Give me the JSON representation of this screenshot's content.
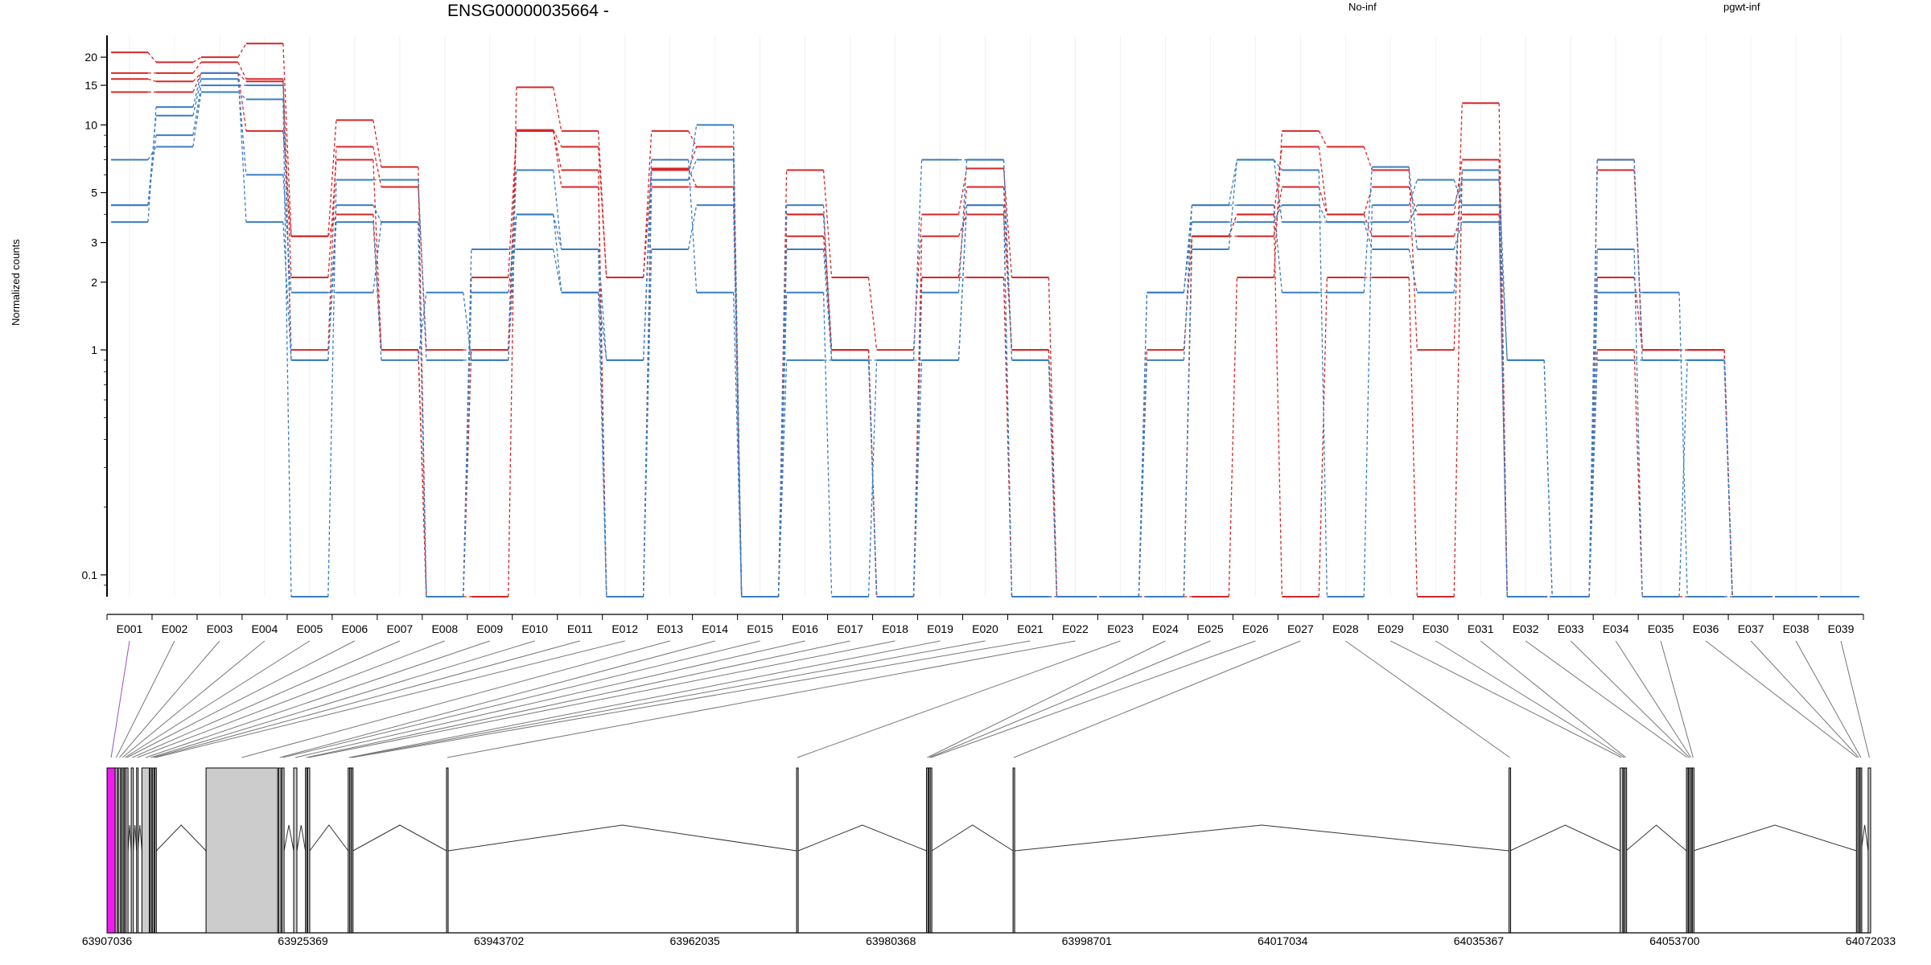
{
  "chart_data": {
    "type": "line",
    "title": "ENSG00000035664 -",
    "ylabel": "Normalized counts",
    "xlabel": "",
    "yscale": "log",
    "ylim": [
      0.08,
      25
    ],
    "yticks": [
      0.1,
      1,
      2,
      3,
      5,
      10,
      15,
      20
    ],
    "ytick_labels": [
      "0.1",
      "1",
      "2",
      "3",
      "5",
      "10",
      "15",
      "20"
    ],
    "grid": "vertical-light",
    "legend_placement": "top-right",
    "colors": {
      "No-inf": "#d62728",
      "pgwt-inf": "#3a7dc2"
    },
    "categories": [
      "E001",
      "E002",
      "E003",
      "E004",
      "E005",
      "E006",
      "E007",
      "E008",
      "E009",
      "E010",
      "E011",
      "E012",
      "E013",
      "E014",
      "E015",
      "E016",
      "E017",
      "E018",
      "E019",
      "E020",
      "E021",
      "E022",
      "E023",
      "E024",
      "E025",
      "E026",
      "E027",
      "E028",
      "E029",
      "E030",
      "E031",
      "E032",
      "E033",
      "E034",
      "E035",
      "E036",
      "E037",
      "E038",
      "E039"
    ],
    "legend": [
      {
        "label": "No-inf",
        "group": "No-inf"
      },
      {
        "label": "pgwt-inf",
        "group": "pgwt-inf"
      }
    ],
    "series": [
      {
        "group": "No-inf",
        "values": [
          21,
          19,
          20,
          23,
          3.2,
          10.5,
          6.5,
          0.08,
          0.08,
          14.7,
          9.4,
          2.1,
          9.4,
          8,
          0.08,
          6.3,
          2.1,
          1,
          4,
          6.4,
          2.1,
          0.08,
          0.08,
          0.08,
          0.08,
          2.1,
          9.4,
          8,
          6.3,
          1,
          12.5,
          0.08,
          0.08,
          6.3,
          1,
          1,
          0.08,
          0.08,
          0.08
        ]
      },
      {
        "group": "No-inf",
        "values": [
          17,
          17,
          19,
          16,
          1,
          8,
          5.3,
          1,
          1,
          9.5,
          8,
          2.1,
          6.3,
          8,
          0.08,
          4,
          1,
          0.08,
          2.1,
          5.3,
          1,
          0.08,
          0.08,
          0.08,
          3.2,
          4,
          8,
          4,
          5.3,
          4,
          7,
          0.08,
          0.08,
          7,
          1,
          1,
          0.08,
          0.08,
          0.08
        ]
      },
      {
        "group": "No-inf",
        "values": [
          16,
          15.6,
          17,
          15.6,
          2.1,
          7,
          1,
          0.08,
          2.1,
          9.4,
          6.3,
          0.08,
          6.4,
          5.3,
          0.08,
          3.2,
          1,
          0.08,
          3.2,
          4,
          1,
          0.08,
          0.08,
          1,
          3.2,
          3.2,
          5.3,
          4,
          3.2,
          3.2,
          4,
          0.08,
          0.08,
          2.1,
          1,
          1,
          0.08,
          0.08,
          0.08
        ]
      },
      {
        "group": "No-inf",
        "values": [
          14,
          14,
          17,
          9.4,
          3.2,
          4,
          1,
          0.08,
          1,
          9.4,
          5.3,
          0.08,
          5.3,
          5.3,
          0.08,
          4,
          1,
          0.08,
          2.1,
          2.1,
          0.08,
          0.08,
          0.08,
          0.08,
          3.2,
          4,
          0.08,
          2.1,
          2.1,
          0.08,
          6.3,
          0.08,
          0.08,
          1,
          0.08,
          0.08,
          0.08,
          0.08,
          0.08
        ]
      },
      {
        "group": "pgwt-inf",
        "values": [
          7,
          8,
          14,
          13,
          0.08,
          5.7,
          5.7,
          0.9,
          0.9,
          6.3,
          2.8,
          0.08,
          5.7,
          7,
          0.08,
          4.4,
          0.9,
          0.9,
          0.9,
          4.4,
          0.08,
          0.08,
          0.08,
          1.8,
          4.4,
          7,
          6.3,
          0.08,
          4.4,
          5.7,
          4.4,
          0.9,
          0.08,
          1.8,
          1.8,
          0.08,
          0.08,
          0.08,
          0.08
        ]
      },
      {
        "group": "pgwt-inf",
        "values": [
          4.4,
          9,
          15,
          15,
          0.9,
          4.4,
          3.7,
          0.08,
          1.8,
          4,
          1.8,
          0.9,
          5.7,
          10,
          0.08,
          2.8,
          0.9,
          0.08,
          1.8,
          7,
          0.9,
          0.08,
          0.08,
          1.8,
          3.7,
          3.7,
          4.4,
          3.7,
          3.7,
          4.4,
          5.7,
          0.9,
          0.08,
          2.8,
          0.08,
          0.9,
          0.08,
          0.08,
          0.08
        ]
      },
      {
        "group": "pgwt-inf",
        "values": [
          4.4,
          11,
          16,
          6,
          1.8,
          1.8,
          3.7,
          0.08,
          2.8,
          2.8,
          1.8,
          0.08,
          2.8,
          4.4,
          0.08,
          1.8,
          0.08,
          0.9,
          7,
          7,
          0.9,
          0.08,
          0.08,
          0.9,
          4.4,
          4.4,
          1.8,
          1.8,
          6.5,
          2.8,
          3.7,
          0.08,
          0.08,
          0.9,
          0.9,
          0.9,
          0.08,
          0.08,
          0.08
        ]
      },
      {
        "group": "pgwt-inf",
        "values": [
          3.7,
          12,
          17,
          3.7,
          0.9,
          3.7,
          0.9,
          1.8,
          0.9,
          4,
          2.8,
          0.9,
          7,
          1.8,
          0.08,
          0.9,
          0.9,
          0.08,
          0.9,
          4.4,
          0.08,
          0.08,
          0.08,
          0.08,
          2.8,
          7,
          3.7,
          3.7,
          2.8,
          1.8,
          6.3,
          0.08,
          0.08,
          7,
          0.9,
          0.9,
          0.08,
          0.08,
          0.08
        ]
      }
    ],
    "genomic_axis": {
      "tick_labels": [
        "63907036",
        "63925369",
        "63943702",
        "63962035",
        "63980368",
        "63998701",
        "64017034",
        "64035367",
        "64053700",
        "64072033"
      ],
      "exons": [
        {
          "id": "E001",
          "start": 63907040,
          "end": 63907800,
          "highlight": true
        },
        {
          "id": "E002",
          "start": 63907800,
          "end": 63908000,
          "highlight": false
        },
        {
          "id": "E003",
          "start": 63908100,
          "end": 63908300,
          "highlight": false
        },
        {
          "id": "E004",
          "start": 63908400,
          "end": 63908550,
          "highlight": false
        },
        {
          "id": "E005",
          "start": 63908650,
          "end": 63908750,
          "highlight": false
        },
        {
          "id": "E006",
          "start": 63908800,
          "end": 63909000,
          "highlight": false
        },
        {
          "id": "E007",
          "start": 63909300,
          "end": 63909500,
          "highlight": false
        },
        {
          "id": "E008",
          "start": 63909800,
          "end": 63909920,
          "highlight": false
        },
        {
          "id": "E009",
          "start": 63910300,
          "end": 63911000,
          "highlight": false
        },
        {
          "id": "E010",
          "start": 63911050,
          "end": 63911200,
          "highlight": false
        },
        {
          "id": "E011",
          "start": 63911300,
          "end": 63911400,
          "highlight": false
        },
        {
          "id": "E012",
          "start": 63911500,
          "end": 63911650,
          "highlight": false
        },
        {
          "id": "E013",
          "start": 63916300,
          "end": 63923000,
          "highlight": false
        },
        {
          "id": "E014",
          "start": 63923100,
          "end": 63923300,
          "highlight": false
        },
        {
          "id": "E015",
          "start": 63923400,
          "end": 63923600,
          "highlight": false
        },
        {
          "id": "E016",
          "start": 63924500,
          "end": 63924800,
          "highlight": false
        },
        {
          "id": "E017",
          "start": 63925600,
          "end": 63925750,
          "highlight": false
        },
        {
          "id": "E018",
          "start": 63925800,
          "end": 63926000,
          "highlight": false
        },
        {
          "id": "E019",
          "start": 63929600,
          "end": 63929700,
          "highlight": false
        },
        {
          "id": "E020",
          "start": 63929750,
          "end": 63929850,
          "highlight": false
        },
        {
          "id": "E021",
          "start": 63929900,
          "end": 63930050,
          "highlight": false
        },
        {
          "id": "E022",
          "start": 63938800,
          "end": 63938950,
          "highlight": false
        },
        {
          "id": "E023",
          "start": 63971550,
          "end": 63971700,
          "highlight": false
        },
        {
          "id": "E024",
          "start": 63983700,
          "end": 63983850,
          "highlight": false
        },
        {
          "id": "E025",
          "start": 63983900,
          "end": 63984000,
          "highlight": false
        },
        {
          "id": "E026",
          "start": 63984050,
          "end": 63984200,
          "highlight": false
        },
        {
          "id": "E027",
          "start": 63991800,
          "end": 63991950,
          "highlight": false
        },
        {
          "id": "E028",
          "start": 64038200,
          "end": 64038300,
          "highlight": false
        },
        {
          "id": "E029",
          "start": 64048600,
          "end": 64048850,
          "highlight": false
        },
        {
          "id": "E030",
          "start": 64048900,
          "end": 64049000,
          "highlight": false
        },
        {
          "id": "E031",
          "start": 64049050,
          "end": 64049150,
          "highlight": false
        },
        {
          "id": "E032",
          "start": 64054800,
          "end": 64054900,
          "highlight": false
        },
        {
          "id": "E033",
          "start": 64055000,
          "end": 64055100,
          "highlight": false
        },
        {
          "id": "E034",
          "start": 64055150,
          "end": 64055300,
          "highlight": false
        },
        {
          "id": "E035",
          "start": 64055350,
          "end": 64055450,
          "highlight": false
        },
        {
          "id": "E036",
          "start": 64070700,
          "end": 64070800,
          "highlight": false
        },
        {
          "id": "E037",
          "start": 64070850,
          "end": 64071000,
          "highlight": false
        },
        {
          "id": "E038",
          "start": 64071050,
          "end": 64071150,
          "highlight": false
        },
        {
          "id": "E039",
          "start": 64071800,
          "end": 64072033,
          "highlight": false
        }
      ],
      "highlight_color": "#ee1cee",
      "exon_fill": "#cccccc"
    }
  }
}
